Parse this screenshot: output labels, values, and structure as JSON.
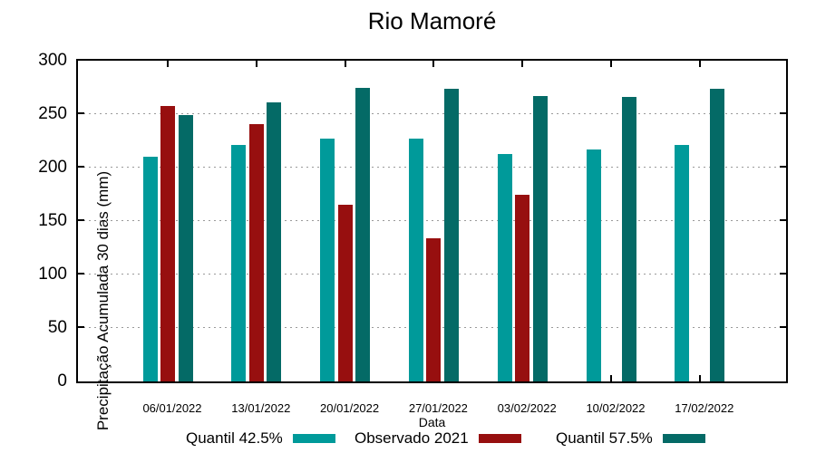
{
  "chart_data": {
    "type": "bar",
    "bar_layout": "clustered",
    "title": "Rio Mamoré",
    "xlabel": "Data",
    "ylabel": "Precipitação Acumulada 30 dias (mm)",
    "ylim": [
      0,
      300
    ],
    "yticks": [
      0,
      50,
      100,
      150,
      200,
      250,
      300
    ],
    "grid": {
      "horizontal": true,
      "style": "dotted",
      "levels": [
        50,
        100,
        150,
        200,
        250
      ]
    },
    "legend_position": "bottom",
    "categories": [
      "06/01/2022",
      "13/01/2022",
      "20/01/2022",
      "27/01/2022",
      "03/02/2022",
      "10/02/2022",
      "17/02/2022"
    ],
    "series": [
      {
        "name": "Quantil 42.5%",
        "color": "#009A9A",
        "values": [
          210,
          221,
          227,
          227,
          213,
          217,
          221
        ]
      },
      {
        "name": "Observado 2021",
        "color": "#970F0F",
        "values": [
          258,
          241,
          165,
          134,
          175,
          null,
          null
        ]
      },
      {
        "name": "Quantil 57.5%",
        "color": "#046A66",
        "values": [
          249,
          261,
          275,
          274,
          267,
          266,
          274
        ]
      }
    ]
  },
  "colors": {
    "axis": "#000000",
    "grid": "#9A9A9A",
    "background": "#FFFFFF",
    "text": "#000000"
  }
}
